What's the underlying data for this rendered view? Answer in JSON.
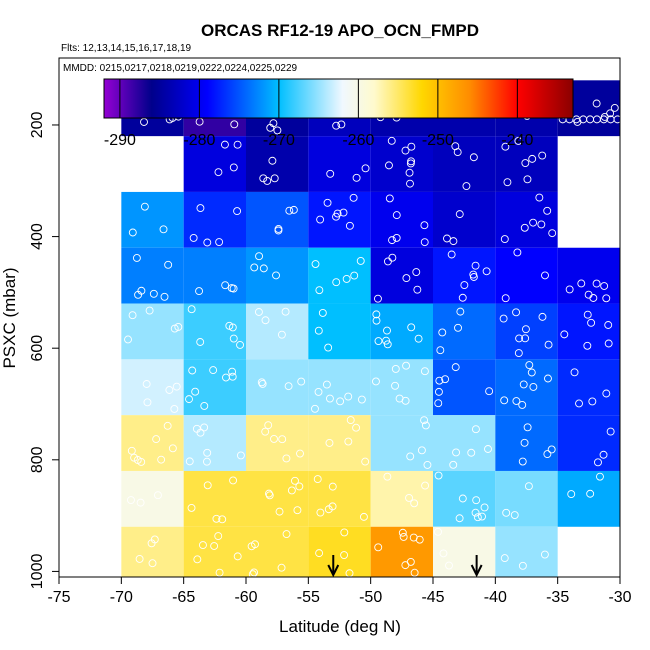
{
  "chart_data": {
    "type": "heatmap",
    "title": "ORCAS RF12-19 APO_OCN_FMPD",
    "flights_note": "Flts: 12,13,14,15,16,17,18,19",
    "dates_note": "MMDD: 0215,0217,0218,0219,0222,0224,0225,0229",
    "xlabel": "Latitude (deg N)",
    "ylabel": "PSXC (mbar)",
    "xlim": [
      -75,
      -30
    ],
    "ylim": [
      1010,
      80
    ],
    "y_reversed": true,
    "x_ticks": [
      -75,
      -70,
      -65,
      -60,
      -55,
      -50,
      -45,
      -40,
      -35,
      -30
    ],
    "x_tick_labels": [
      "-75",
      "-70",
      "-65",
      "-60",
      "-55",
      "-50",
      "-45",
      "-40",
      "-35",
      "-30"
    ],
    "y_ticks": [
      200,
      400,
      600,
      800,
      1000
    ],
    "y_tick_labels": [
      "200",
      "400",
      "600",
      "800",
      "1000"
    ],
    "colorbar": {
      "range": [
        -292,
        -233
      ],
      "ticks": [
        -290,
        -280,
        -270,
        -260,
        -250,
        -240
      ],
      "tick_labels": [
        "-290",
        "-280",
        "-270",
        "-260",
        "-250",
        "-240"
      ],
      "stops": [
        {
          "value": -292,
          "color": "#9400d3"
        },
        {
          "value": -286,
          "color": "#00008b"
        },
        {
          "value": -279,
          "color": "#0000ff"
        },
        {
          "value": -270,
          "color": "#00bfff"
        },
        {
          "value": -262,
          "color": "#f0f8ff"
        },
        {
          "value": -258,
          "color": "#fffacd"
        },
        {
          "value": -252,
          "color": "#ffd700"
        },
        {
          "value": -246,
          "color": "#ff8c00"
        },
        {
          "value": -240,
          "color": "#ff0000"
        },
        {
          "value": -233,
          "color": "#8b0000"
        }
      ]
    },
    "lat_bins": [
      -70,
      -65,
      -60,
      -55,
      -50,
      -45,
      -40,
      -35,
      -30
    ],
    "pressure_bins": [
      120,
      220,
      320,
      420,
      520,
      620,
      720,
      820,
      920,
      1020
    ],
    "cells": [
      [
        -285,
        -288,
        -285,
        -283,
        -284,
        -284,
        -284,
        -285
      ],
      [
        null,
        -281,
        -284,
        -281,
        -282,
        -283,
        -283,
        null
      ],
      [
        -272,
        -277,
        -275,
        -278,
        -280,
        -282,
        -281,
        null
      ],
      [
        -273,
        -273,
        -272,
        -270,
        -281,
        -278,
        -279,
        -280
      ],
      [
        -265,
        -268,
        -264,
        -270,
        -271,
        -274,
        -276,
        -278
      ],
      [
        -263,
        -268,
        -265,
        -265,
        -265,
        -275,
        -274,
        -277
      ],
      [
        -256,
        -264,
        -256,
        -256,
        -265,
        -265,
        -274,
        -277
      ],
      [
        -260,
        -254,
        -254,
        -254,
        -257,
        -267,
        -266,
        -271
      ],
      [
        -256,
        -254,
        -254,
        -253,
        -247,
        -260,
        -265,
        null
      ]
    ],
    "arrows_at_lat": [
      -53,
      -41.5
    ]
  }
}
